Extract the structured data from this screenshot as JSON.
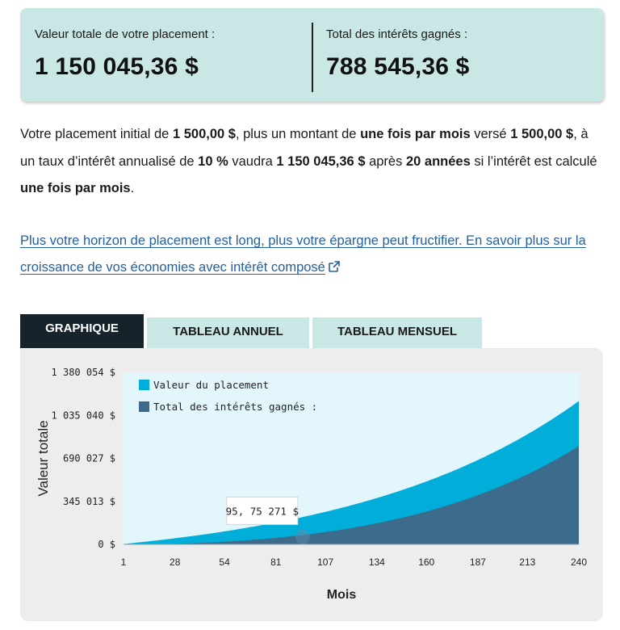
{
  "summary": {
    "total_label": "Valeur totale de votre placement :",
    "total_value": "1 150 045,36 $",
    "interest_label": "Total des intérêts gagnés :",
    "interest_value": "788 545,36 $"
  },
  "paragraph": {
    "t1": "Votre placement initial de ",
    "initial": "1 500,00 $",
    "t2": ", plus un montant de ",
    "frequency": "une fois par mois",
    "t3": " versé ",
    "contribution": "1 500,00 $",
    "t4": ", à un taux d’intérêt annualisé de ",
    "rate": "10 %",
    "t5": " vaudra ",
    "final": "1 150 045,36 $",
    "t6": " après ",
    "years": "20 années",
    "t7": " si l’intérêt est calculé ",
    "compounding": "une fois par mois",
    "t8": "."
  },
  "link": {
    "text": "Plus votre horizon de placement est long, plus votre épargne peut fructifier. En savoir plus sur la croissance de vos économies avec intérêt composé",
    "icon": "external-link-icon"
  },
  "tabs": [
    {
      "label": "GRAPHIQUE",
      "active": true
    },
    {
      "label": "TABLEAU ANNUEL",
      "active": false
    },
    {
      "label": "TABLEAU MENSUEL",
      "active": false
    }
  ],
  "colors": {
    "summary_bg": "#c9e7e5",
    "plot_bg": "#e3f6fb",
    "series_value": "#00aed9",
    "series_interest": "#3d6b8c",
    "tab_active": "#16232b",
    "link": "#2360a0"
  },
  "chart_data": {
    "type": "area",
    "xlabel": "Mois",
    "ylabel": "Valeur totale",
    "xlim": [
      1,
      240
    ],
    "ylim": [
      0,
      1380054
    ],
    "x_ticks": [
      1,
      28,
      54,
      81,
      107,
      134,
      160,
      187,
      213,
      240
    ],
    "y_ticks": [
      0,
      345013,
      690027,
      1035040,
      1380054
    ],
    "y_tick_labels": [
      "0 $",
      "345 013 $",
      "690 027 $",
      "1 035 040 $",
      "1 380 054 $"
    ],
    "legend": [
      "Valeur du placement",
      "Total des intérêts gagnés :"
    ],
    "legend_position": "top-left",
    "tooltip": "95, 75 271 $",
    "tooltip_point": {
      "x": 95,
      "y": 75271
    },
    "model": {
      "initial": 1500,
      "monthly_contribution": 1500,
      "annual_rate": 0.1,
      "months": 240
    },
    "series": [
      {
        "name": "Valeur du placement",
        "final_value": 1150045.36
      },
      {
        "name": "Total des intérêts gagnés :",
        "final_value": 788545.36
      }
    ]
  }
}
